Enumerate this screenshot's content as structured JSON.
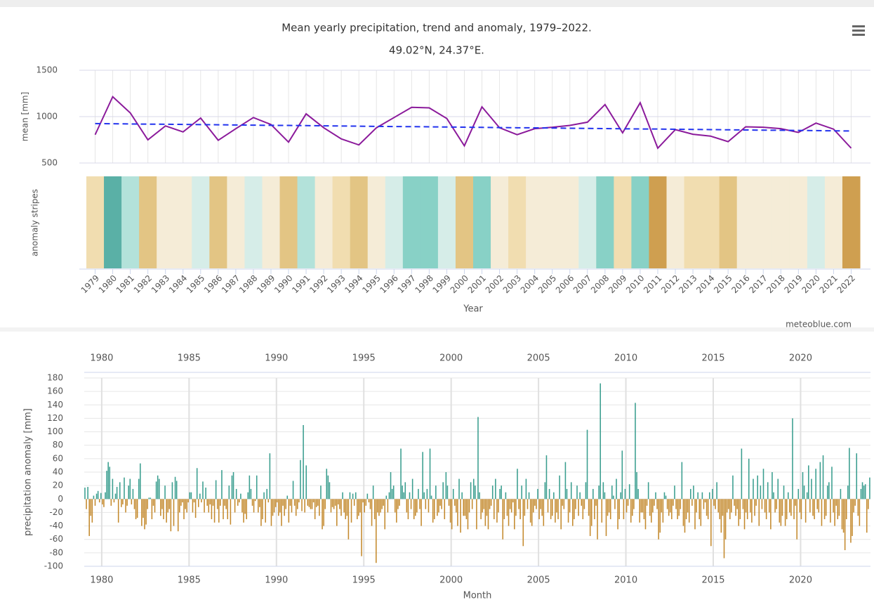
{
  "chart_data": [
    {
      "type": "line",
      "title": "Mean yearly precipitation, trend and anomaly, 1979–2022.",
      "subtitle": "49.02°N, 24.37°E.",
      "y_label": "mean [mm]",
      "stripes_label": "anomaly stripes",
      "x_label": "Year",
      "credit": "meteoblue.com",
      "categories": [
        "1979",
        "1980",
        "1981",
        "1982",
        "1983",
        "1984",
        "1985",
        "1986",
        "1987",
        "1988",
        "1989",
        "1990",
        "1991",
        "1992",
        "1993",
        "1994",
        "1995",
        "1996",
        "1997",
        "1998",
        "1999",
        "2000",
        "2001",
        "2002",
        "2003",
        "2004",
        "2005",
        "2006",
        "2007",
        "2008",
        "2009",
        "2010",
        "2011",
        "2012",
        "2013",
        "2014",
        "2015",
        "2016",
        "2017",
        "2018",
        "2019",
        "2020",
        "2021",
        "2022"
      ],
      "series": [
        {
          "color": "#8b1a9b",
          "dashed": false,
          "values": [
            805,
            1215,
            1040,
            750,
            900,
            835,
            985,
            745,
            870,
            990,
            915,
            725,
            1030,
            880,
            760,
            695,
            880,
            990,
            1100,
            1095,
            980,
            685,
            1105,
            880,
            805,
            870,
            885,
            905,
            940,
            1130,
            825,
            1150,
            660,
            860,
            810,
            790,
            730,
            890,
            885,
            870,
            830,
            930,
            865,
            660
          ]
        },
        {
          "color": "#2233ee",
          "dashed": true,
          "values": [
            925,
            923,
            921,
            919,
            918,
            916,
            914,
            912,
            910,
            908,
            906,
            905,
            903,
            901,
            899,
            897,
            895,
            893,
            892,
            890,
            888,
            886,
            884,
            882,
            880,
            879,
            877,
            875,
            873,
            871,
            869,
            867,
            866,
            864,
            862,
            860,
            858,
            856,
            854,
            853,
            851,
            849,
            847,
            845
          ]
        }
      ],
      "stripe_colors": [
        "#f1ddb0",
        "#5ab0a6",
        "#b3e2da",
        "#e3c584",
        "#f5ecd7",
        "#f5ecd7",
        "#d6ede8",
        "#e3c584",
        "#f5ecd7",
        "#d6ede8",
        "#f5ecd7",
        "#e3c584",
        "#b3e2da",
        "#f5ecd7",
        "#f1ddb0",
        "#e3c584",
        "#f5ecd7",
        "#d6ede8",
        "#88d1c6",
        "#88d1c6",
        "#d6ede8",
        "#e3c584",
        "#88d1c6",
        "#f5ecd7",
        "#f1ddb0",
        "#f5ecd7",
        "#f5ecd7",
        "#f5ecd7",
        "#d6ede8",
        "#88d1c6",
        "#f1ddb0",
        "#88d1c6",
        "#cf9f50",
        "#f5ecd7",
        "#f1ddb0",
        "#f1ddb0",
        "#e3c584",
        "#f5ecd7",
        "#f5ecd7",
        "#f5ecd7",
        "#f5ecd7",
        "#d6ede8",
        "#f5ecd7",
        "#cf9f50"
      ],
      "ylim": [
        500,
        1500
      ],
      "yticks": [
        500,
        1000,
        1500
      ],
      "grid": true
    },
    {
      "type": "bar",
      "x_label": "Month",
      "y_label": "precipitation anomaly [mm]",
      "years": [
        1979,
        1980,
        1981,
        1982,
        1983,
        1984,
        1985,
        1986,
        1987,
        1988,
        1989,
        1990,
        1991,
        1992,
        1993,
        1994,
        1995,
        1996,
        1997,
        1998,
        1999,
        2000,
        2001,
        2002,
        2003,
        2004,
        2005,
        2006,
        2007,
        2008,
        2009,
        2010,
        2011,
        2012,
        2013,
        2014,
        2015,
        2016,
        2017,
        2018,
        2019,
        2020,
        2021,
        2022,
        2023
      ],
      "values": [
        [
          17,
          -15,
          18,
          -55,
          -25,
          -35,
          5,
          -10,
          8,
          12,
          -5,
          9
        ],
        [
          -8,
          -12,
          10,
          42,
          55,
          48,
          -10,
          30,
          -5,
          8,
          18,
          -35
        ],
        [
          25,
          -12,
          -8,
          32,
          -20,
          -10,
          20,
          30,
          -8,
          15,
          -15,
          -30
        ],
        [
          -28,
          30,
          53,
          -40,
          -28,
          -45,
          -38,
          -15,
          2,
          2,
          -30,
          -10
        ],
        [
          -20,
          26,
          35,
          30,
          -25,
          -15,
          -30,
          20,
          -35,
          -20,
          -15,
          -48
        ],
        [
          25,
          -40,
          33,
          27,
          -48,
          -20,
          -10,
          -5,
          -30,
          -15,
          -20,
          -5
        ],
        [
          10,
          10,
          -20,
          -5,
          -28,
          46,
          -12,
          8,
          -5,
          26,
          -20,
          17
        ],
        [
          -10,
          -20,
          -8,
          -30,
          -10,
          -35,
          28,
          -15,
          -35,
          -10,
          43,
          -30
        ],
        [
          -10,
          -15,
          -30,
          20,
          -38,
          35,
          40,
          -20,
          15,
          -10,
          -5,
          8
        ],
        [
          -20,
          -35,
          -22,
          -30,
          10,
          35,
          15,
          -10,
          -20,
          -3,
          35,
          -20
        ],
        [
          -12,
          -40,
          -30,
          10,
          -35,
          15,
          -5,
          68,
          -40,
          -25,
          -20,
          -12
        ],
        [
          -5,
          -25,
          -20,
          -40,
          -10,
          -25,
          -15,
          5,
          -35,
          -10,
          -20,
          27
        ],
        [
          -10,
          -25,
          -15,
          -5,
          58,
          -18,
          110,
          -20,
          50,
          -10,
          -12,
          -15
        ],
        [
          -15,
          -5,
          -30,
          -12,
          -10,
          -25,
          20,
          -45,
          -40,
          -15,
          45,
          35
        ],
        [
          25,
          -20,
          -12,
          -15,
          -10,
          -40,
          -8,
          -15,
          -25,
          10,
          -20,
          -30
        ],
        [
          -25,
          -60,
          10,
          -35,
          8,
          -10,
          10,
          -30,
          -25,
          -20,
          -85,
          -5
        ],
        [
          -20,
          -10,
          8,
          -5,
          -15,
          -40,
          20,
          -30,
          -95,
          -20,
          -25,
          -20
        ],
        [
          -15,
          -10,
          -45,
          5,
          -20,
          10,
          40,
          15,
          20,
          -20,
          -35,
          -15
        ],
        [
          -10,
          75,
          20,
          10,
          25,
          -20,
          -30,
          10,
          -15,
          30,
          -30,
          -25
        ],
        [
          -20,
          15,
          -15,
          -40,
          70,
          10,
          -15,
          15,
          -20,
          75,
          5,
          -35
        ],
        [
          -30,
          20,
          -25,
          -20,
          -10,
          -15,
          25,
          -30,
          40,
          20,
          -10,
          -35
        ],
        [
          -45,
          15,
          -10,
          -20,
          -40,
          30,
          -50,
          10,
          -25,
          -25,
          -30,
          -45
        ],
        [
          -20,
          25,
          -15,
          30,
          20,
          -45,
          122,
          10,
          -30,
          -20,
          -15,
          -40
        ],
        [
          -25,
          -45,
          -15,
          -10,
          20,
          -30,
          30,
          -35,
          -20,
          15,
          20,
          -60
        ],
        [
          -30,
          10,
          -25,
          -40,
          -15,
          -20,
          -5,
          -45,
          -25,
          45,
          -15,
          -30
        ],
        [
          20,
          -70,
          -25,
          30,
          -15,
          10,
          -35,
          -40,
          -20,
          -10,
          -15,
          15
        ],
        [
          -30,
          -15,
          -25,
          -40,
          25,
          65,
          -20,
          15,
          -30,
          -25,
          10,
          -35
        ],
        [
          -20,
          -30,
          35,
          -45,
          -10,
          -15,
          55,
          15,
          -35,
          -20,
          25,
          -40
        ],
        [
          -30,
          -15,
          20,
          -25,
          10,
          -10,
          -30,
          -15,
          25,
          103,
          -25,
          -55
        ],
        [
          -40,
          15,
          -30,
          -10,
          -60,
          20,
          172,
          -35,
          25,
          10,
          -55,
          -25
        ],
        [
          -20,
          -30,
          20,
          5,
          -15,
          30,
          -45,
          -30,
          10,
          72,
          -30,
          15
        ],
        [
          -20,
          -10,
          22,
          -35,
          -25,
          -15,
          143,
          40,
          15,
          -35,
          -20,
          -20
        ],
        [
          -30,
          -45,
          -10,
          25,
          -25,
          -35,
          -20,
          -10,
          10,
          -15,
          -60,
          -50
        ],
        [
          -20,
          -35,
          10,
          5,
          -15,
          -25,
          -20,
          -30,
          -10,
          20,
          -15,
          -30
        ],
        [
          -25,
          -15,
          55,
          -40,
          -50,
          -30,
          -20,
          -35,
          15,
          -10,
          20,
          -45
        ],
        [
          -20,
          10,
          -30,
          -40,
          10,
          -15,
          -5,
          -25,
          -30,
          10,
          -70,
          15
        ],
        [
          -10,
          -15,
          25,
          -20,
          -30,
          -50,
          -25,
          -88,
          -60,
          -20,
          -15,
          -30
        ],
        [
          -20,
          35,
          -10,
          -25,
          -15,
          -40,
          -30,
          75,
          -15,
          -45,
          -20,
          -30
        ],
        [
          60,
          -20,
          -35,
          30,
          -25,
          -10,
          35,
          -40,
          20,
          -15,
          45,
          -20
        ],
        [
          -30,
          25,
          -20,
          -45,
          40,
          10,
          -20,
          -15,
          30,
          -35,
          -40,
          -25
        ],
        [
          20,
          -40,
          -30,
          10,
          -20,
          -25,
          120,
          -30,
          -10,
          -60,
          15,
          -20
        ],
        [
          -30,
          40,
          20,
          -35,
          10,
          50,
          -20,
          30,
          -25,
          -30,
          45,
          -15
        ],
        [
          -20,
          55,
          -40,
          65,
          -30,
          -25,
          20,
          25,
          -35,
          48,
          -20,
          -40
        ],
        [
          -10,
          -30,
          -25,
          15,
          -45,
          -50,
          -76,
          -30,
          20,
          76,
          -65,
          -55
        ],
        [
          -20,
          -10,
          68,
          -25,
          -40,
          15,
          25,
          20,
          22,
          -50,
          -15,
          32
        ]
      ],
      "positive_color": "#3a9e8f",
      "negative_color": "#c48a2e",
      "xlim": [
        1979,
        2024
      ],
      "xticks": [
        1980,
        1985,
        1990,
        1995,
        2000,
        2005,
        2010,
        2015,
        2020
      ],
      "ylim": [
        -100,
        180
      ],
      "yticks": [
        -100,
        -80,
        -60,
        -40,
        -20,
        0,
        20,
        40,
        60,
        80,
        100,
        120,
        140,
        160,
        180
      ],
      "grid": true
    }
  ]
}
